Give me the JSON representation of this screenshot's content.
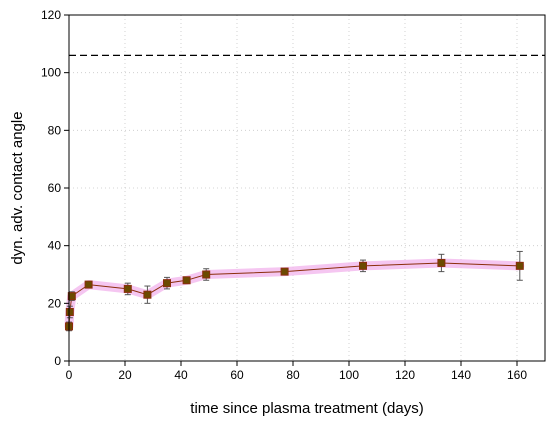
{
  "chart_data": {
    "type": "scatter",
    "xlabel": "time since plasma treatment (days)",
    "ylabel": "dyn. adv. contact angle",
    "xlim": [
      0,
      170
    ],
    "ylim": [
      0,
      120
    ],
    "xticks": [
      0,
      20,
      40,
      60,
      80,
      100,
      120,
      140,
      160
    ],
    "yticks": [
      0,
      20,
      40,
      60,
      80,
      100,
      120
    ],
    "grid": true,
    "legend": "none",
    "reference_line": {
      "y": 106,
      "style": "dashed",
      "color": "#000000"
    },
    "series": [
      {
        "color": "#8b2e0c",
        "marker_fill": "#6b4a00",
        "band_color": "#f2b8ee",
        "x": [
          0,
          0.3,
          1,
          7,
          21,
          28,
          35,
          42,
          49,
          77,
          105,
          133,
          161
        ],
        "y": [
          12,
          17,
          22.5,
          26.5,
          25,
          23,
          27,
          28,
          30,
          31,
          33,
          34,
          33
        ],
        "error": [
          1.5,
          2,
          1.5,
          1,
          2,
          3,
          2,
          1,
          2,
          1,
          2,
          3,
          5
        ]
      }
    ]
  }
}
